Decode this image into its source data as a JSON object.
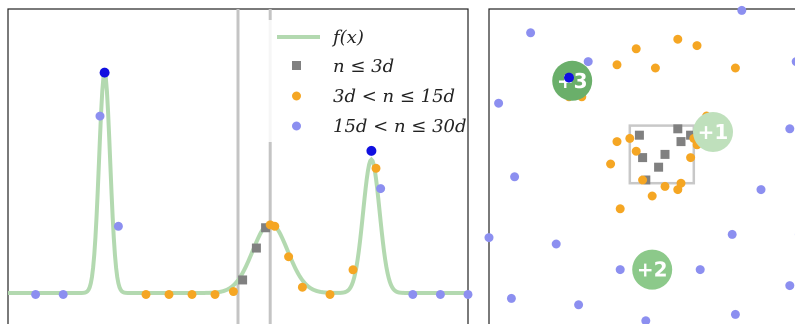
{
  "chart_data": [
    {
      "type": "line",
      "title": "",
      "xlabel": "",
      "ylabel": "",
      "xlim": [
        0,
        1
      ],
      "ylim": [
        0,
        1
      ],
      "grid": false,
      "legend_position": "top-right",
      "vertical_lines": [
        0.5,
        0.57
      ],
      "curve_peaks": [
        {
          "center": 0.21,
          "height": 0.76,
          "width": 0.012
        },
        {
          "center": 0.57,
          "height": 0.24,
          "width": 0.038
        },
        {
          "center": 0.79,
          "height": 0.46,
          "width": 0.018
        }
      ],
      "series": [
        {
          "name": "f(x)",
          "kind": "curve",
          "color": "#b3d9b0"
        },
        {
          "name": "n ≤ 3d",
          "kind": "square",
          "color": "#808080",
          "points": [
            [
              0.51,
              0.045
            ],
            [
              0.54,
              0.155
            ],
            [
              0.56,
              0.225
            ]
          ]
        },
        {
          "name": "3d < n ≤ 15d",
          "kind": "dot",
          "color": "#f5a623",
          "points": [
            [
              0.49,
              0.005
            ],
            [
              0.57,
              0.235
            ],
            [
              0.58,
              0.23
            ],
            [
              0.61,
              0.125
            ],
            [
              0.64,
              0.02
            ],
            [
              0.7,
              -0.005
            ],
            [
              0.75,
              0.08
            ],
            [
              0.8,
              0.43
            ],
            [
              0.3,
              -0.005
            ],
            [
              0.35,
              -0.005
            ],
            [
              0.4,
              -0.005
            ],
            [
              0.45,
              -0.005
            ]
          ]
        },
        {
          "name": "15d < n ≤ 30d",
          "kind": "dot",
          "color": "#8c8ff0",
          "points": [
            [
              0.06,
              -0.005
            ],
            [
              0.12,
              -0.005
            ],
            [
              0.2,
              0.61
            ],
            [
              0.24,
              0.23
            ],
            [
              0.81,
              0.36
            ],
            [
              0.88,
              -0.005
            ],
            [
              0.94,
              -0.005
            ],
            [
              1.0,
              -0.005
            ]
          ]
        },
        {
          "name": "",
          "kind": "highlight",
          "color": "#1010e0",
          "points": [
            [
              0.21,
              0.76
            ],
            [
              0.79,
              0.49
            ]
          ]
        }
      ]
    },
    {
      "type": "scatter",
      "title": "",
      "xlabel": "",
      "ylabel": "",
      "xlim": [
        0,
        1
      ],
      "ylim": [
        0,
        1
      ],
      "grid": false,
      "selection_box": {
        "x0": 0.44,
        "x1": 0.64,
        "y0": 0.44,
        "y1": 0.62
      },
      "badges": [
        {
          "label": "+3",
          "x": 0.26,
          "y": 0.76,
          "color": "#6aaf6a"
        },
        {
          "label": "+1",
          "x": 0.7,
          "y": 0.6,
          "color": "#bfe0bc"
        },
        {
          "label": "+2",
          "x": 0.51,
          "y": 0.17,
          "color": "#8cc98a"
        }
      ],
      "series": [
        {
          "name": "",
          "kind": "square",
          "color": "#808080",
          "points": [
            [
              0.47,
              0.59
            ],
            [
              0.48,
              0.52
            ],
            [
              0.53,
              0.49
            ],
            [
              0.55,
              0.53
            ],
            [
              0.6,
              0.57
            ],
            [
              0.59,
              0.61
            ],
            [
              0.63,
              0.59
            ],
            [
              0.49,
              0.45
            ]
          ]
        },
        {
          "name": "",
          "kind": "dot",
          "color": "#f5a623",
          "points": [
            [
              0.46,
              0.86
            ],
            [
              0.59,
              0.89
            ],
            [
              0.65,
              0.87
            ],
            [
              0.4,
              0.81
            ],
            [
              0.52,
              0.8
            ],
            [
              0.77,
              0.8
            ],
            [
              0.25,
              0.71
            ],
            [
              0.29,
              0.71
            ],
            [
              0.4,
              0.57
            ],
            [
              0.44,
              0.58
            ],
            [
              0.64,
              0.58
            ],
            [
              0.68,
              0.65
            ],
            [
              0.67,
              0.63
            ],
            [
              0.7,
              0.62
            ],
            [
              0.65,
              0.56
            ],
            [
              0.63,
              0.52
            ],
            [
              0.46,
              0.54
            ],
            [
              0.38,
              0.5
            ],
            [
              0.59,
              0.42
            ],
            [
              0.55,
              0.43
            ],
            [
              0.51,
              0.4
            ],
            [
              0.41,
              0.36
            ],
            [
              0.6,
              0.44
            ],
            [
              0.48,
              0.45
            ]
          ]
        },
        {
          "name": "",
          "kind": "dot",
          "color": "#8c8ff0",
          "points": [
            [
              0.79,
              0.98
            ],
            [
              0.13,
              0.91
            ],
            [
              0.96,
              0.82
            ],
            [
              0.31,
              0.82
            ],
            [
              0.03,
              0.69
            ],
            [
              0.94,
              0.61
            ],
            [
              0.08,
              0.46
            ],
            [
              0.85,
              0.42
            ],
            [
              0.0,
              0.27
            ],
            [
              0.21,
              0.25
            ],
            [
              0.76,
              0.28
            ],
            [
              0.97,
              0.28
            ],
            [
              0.41,
              0.17
            ],
            [
              0.66,
              0.17
            ],
            [
              0.94,
              0.12
            ],
            [
              0.07,
              0.08
            ],
            [
              0.28,
              0.06
            ],
            [
              0.49,
              0.01
            ],
            [
              0.77,
              0.03
            ],
            [
              0.24,
              0.77
            ]
          ]
        },
        {
          "name": "",
          "kind": "highlight",
          "color": "#1010e0",
          "points": [
            [
              0.25,
              0.77
            ]
          ]
        }
      ]
    }
  ],
  "legend": {
    "f_label": "f(x)",
    "sq_label": "n ≤ 3d",
    "mid_label": "3d < n ≤ 15d",
    "high_label": "15d < n ≤ 30d"
  }
}
